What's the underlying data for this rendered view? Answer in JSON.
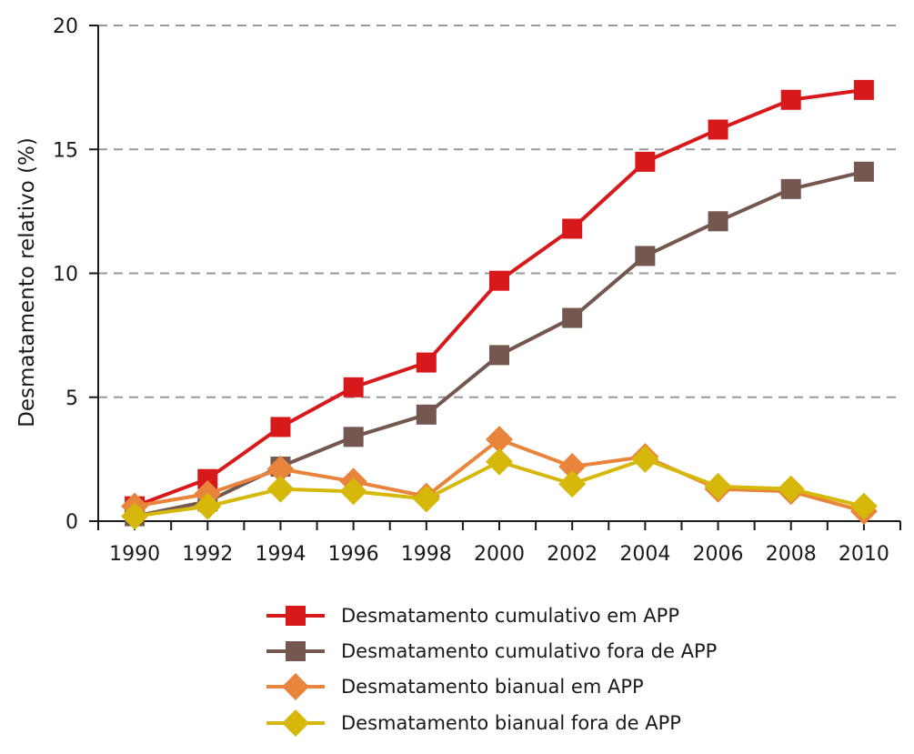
{
  "chart_data": {
    "type": "line",
    "title": "",
    "xlabel": "",
    "ylabel": "Desmatamento relativo (%)",
    "x": [
      1990,
      1992,
      1994,
      1996,
      1998,
      2000,
      2002,
      2004,
      2006,
      2008,
      2010
    ],
    "x_tick_labels": [
      "1990",
      "1992",
      "1994",
      "1996",
      "1998",
      "2000",
      "2002",
      "2004",
      "2006",
      "2008",
      "2010"
    ],
    "xlim": [
      1989,
      2011
    ],
    "ylim": [
      0,
      20
    ],
    "y_ticks": [
      0,
      5,
      10,
      15,
      20
    ],
    "y_tick_labels": [
      "0",
      "5",
      "10",
      "15",
      "20"
    ],
    "grid": "horizontal dashed",
    "legend_position": "bottom",
    "series": [
      {
        "name": "Desmatamento cumulativo em APP",
        "color": "#d7191c",
        "marker": "square",
        "values": [
          0.6,
          1.7,
          3.8,
          5.4,
          6.4,
          9.7,
          11.8,
          14.5,
          15.8,
          17.0,
          17.4
        ]
      },
      {
        "name": "Desmatamento cumulativo fora de APP",
        "color": "#74574f",
        "marker": "square",
        "values": [
          0.2,
          0.8,
          2.2,
          3.4,
          4.3,
          6.7,
          8.2,
          10.7,
          12.1,
          13.4,
          14.1
        ]
      },
      {
        "name": "Desmatamento bianual em APP",
        "color": "#e8843c",
        "marker": "diamond",
        "values": [
          0.6,
          1.1,
          2.1,
          1.6,
          1.0,
          3.3,
          2.2,
          2.6,
          1.3,
          1.2,
          0.4
        ]
      },
      {
        "name": "Desmatamento bianual fora de APP",
        "color": "#d5b80a",
        "marker": "diamond",
        "values": [
          0.2,
          0.6,
          1.3,
          1.2,
          0.9,
          2.4,
          1.5,
          2.5,
          1.4,
          1.3,
          0.6
        ]
      }
    ]
  }
}
